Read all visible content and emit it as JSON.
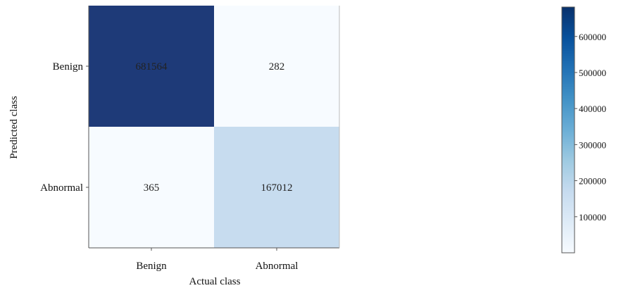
{
  "chart_data": {
    "type": "heatmap",
    "title": "",
    "xlabel": "Actual class",
    "ylabel": "Predicted class",
    "x_categories": [
      "Benign",
      "Abnormal"
    ],
    "y_categories": [
      "Benign",
      "Abnormal"
    ],
    "values": [
      [
        681564,
        282
      ],
      [
        365,
        167012
      ]
    ],
    "value_labels": [
      [
        "681564",
        "282"
      ],
      [
        "365",
        "167012"
      ]
    ],
    "colorbar": {
      "vmin": 0,
      "vmax": 681564,
      "ticks": [
        100000,
        200000,
        300000,
        400000,
        500000,
        600000
      ],
      "tick_labels": [
        "100000",
        "200000",
        "300000",
        "400000",
        "500000",
        "600000"
      ]
    },
    "colormap": [
      "#f7fbff",
      "#deebf7",
      "#c6dbef",
      "#9ecae1",
      "#6baed6",
      "#4292c6",
      "#2171b5",
      "#08519c",
      "#08306b"
    ],
    "colormap_display_top": "#1e3a78",
    "grid": false
  }
}
